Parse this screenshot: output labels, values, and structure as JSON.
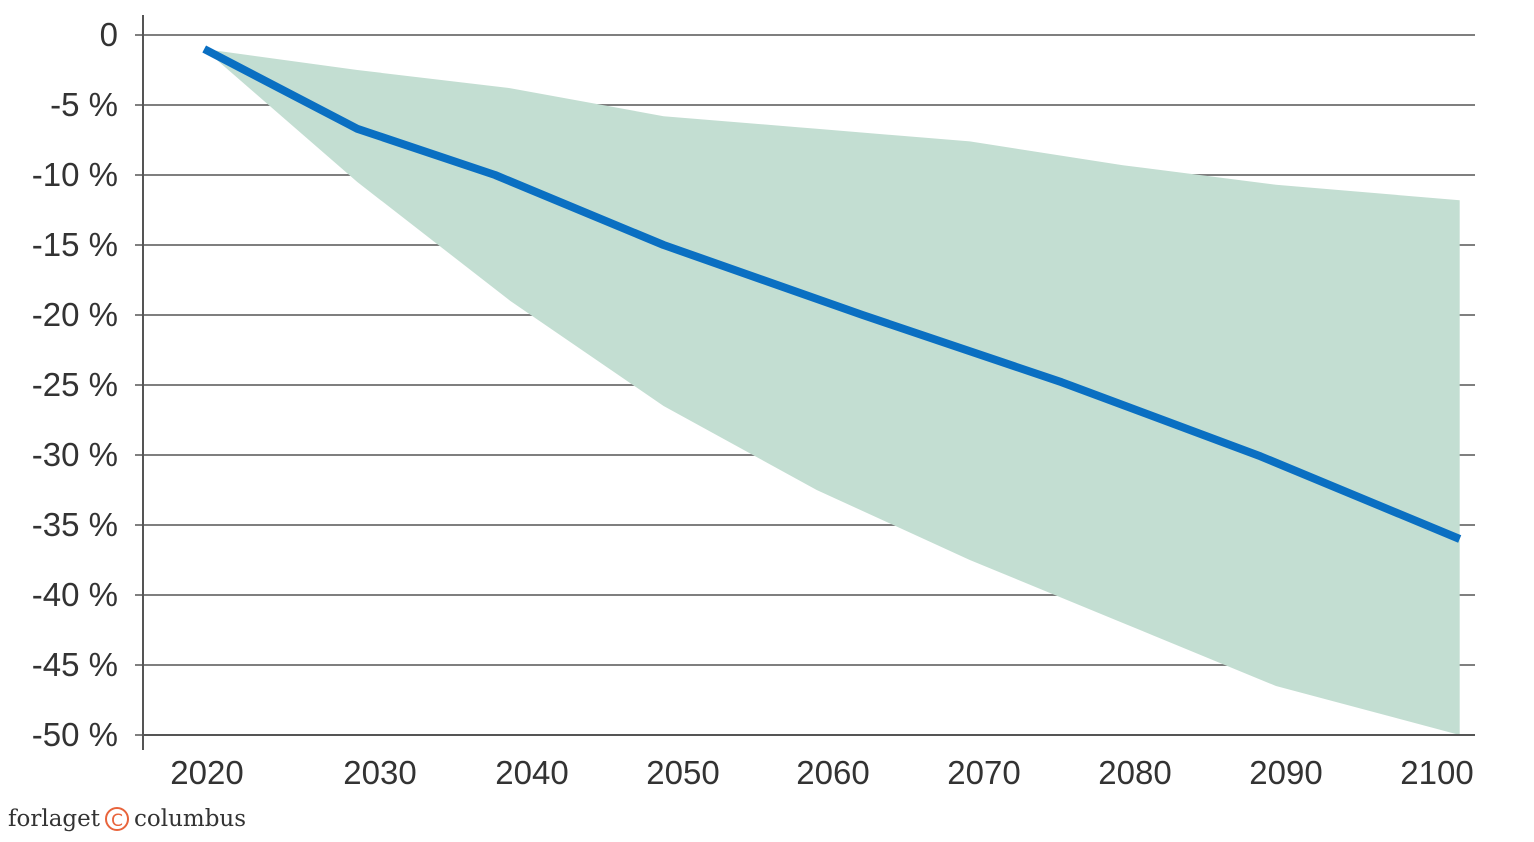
{
  "chart_data": {
    "type": "line",
    "title": "",
    "xlabel": "",
    "ylabel": "",
    "x_ticks": [
      "2020",
      "2030",
      "2040",
      "2050",
      "2060",
      "2070",
      "2080",
      "2090",
      "2100"
    ],
    "y_ticks": [
      "0",
      "-5 %",
      "-10 %",
      "-15 %",
      "-20 %",
      "-25 %",
      "-30 %",
      "-35 %",
      "-40 %",
      "-45 %",
      "-50 %"
    ],
    "ylim": [
      -50,
      0
    ],
    "xlim": [
      2016,
      2103
    ],
    "grid": true,
    "legend": "none",
    "series": [
      {
        "x": [
          2020,
          2030,
          2039,
          2050,
          2063,
          2076,
          2089,
          2102
        ],
        "y": [
          -1,
          -6.7,
          -10,
          -15,
          -20,
          -24.8,
          -30.1,
          -36
        ]
      }
    ],
    "band": {
      "x": [
        2020,
        2030,
        2040,
        2050,
        2060,
        2070,
        2080,
        2090,
        2102
      ],
      "upper": [
        -1,
        -2.5,
        -3.8,
        -5.8,
        -6.7,
        -7.6,
        -9.3,
        -10.7,
        -11.8
      ],
      "lower": [
        -1,
        -10.5,
        -19,
        -26.5,
        -32.5,
        -37.5,
        -42,
        -46.5,
        -50
      ]
    },
    "colors": {
      "line": "#0a6fc2",
      "band": "#c3ded2",
      "grid": "#7f7f7f",
      "axis": "#555555"
    }
  },
  "publisher": {
    "name_left": "forlaget",
    "logo_glyph": "C",
    "name_right": "columbus"
  }
}
